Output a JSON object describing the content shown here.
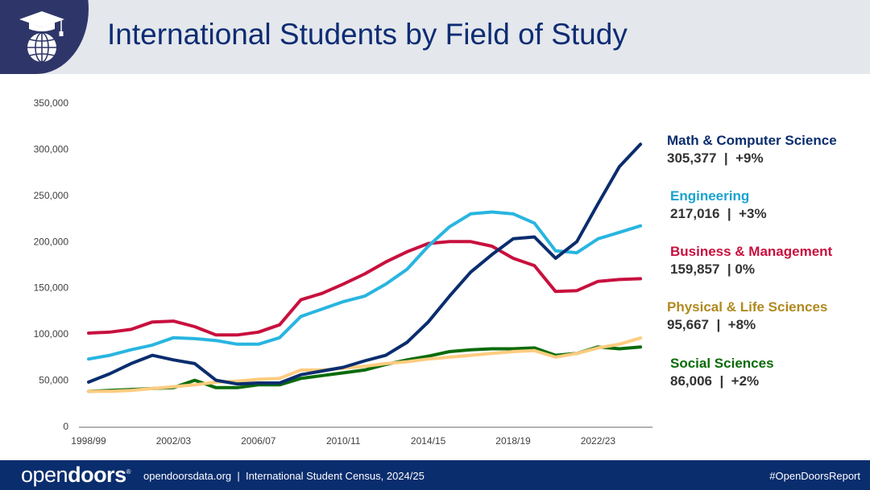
{
  "header": {
    "title": "International Students by Field of Study",
    "logo_icon": "graduation-globe-icon"
  },
  "footer": {
    "brand_light": "open",
    "brand_bold": "doors",
    "brand_mark": "®",
    "text": "opendoorsdata.org  |  International Student Census, 2024/25",
    "hashtag": "#OpenDoorsReport"
  },
  "chart_data": {
    "type": "line",
    "title": "International Students by Field of Study",
    "xlabel": "",
    "ylabel": "",
    "x": [
      "1998/99",
      "1999/00",
      "2000/01",
      "2001/02",
      "2002/03",
      "2003/04",
      "2004/05",
      "2005/06",
      "2006/07",
      "2007/08",
      "2008/09",
      "2009/10",
      "2010/11",
      "2011/12",
      "2012/13",
      "2013/14",
      "2014/15",
      "2015/16",
      "2016/17",
      "2017/18",
      "2018/19",
      "2019/20",
      "2020/21",
      "2021/22",
      "2022/23",
      "2023/24",
      "2024/25"
    ],
    "x_tick_labels": [
      "1998/99",
      "2002/03",
      "2006/07",
      "2010/11",
      "2014/15",
      "2018/19",
      "2022/23"
    ],
    "y_ticks": [
      0,
      50000,
      100000,
      150000,
      200000,
      250000,
      300000,
      350000
    ],
    "y_tick_labels": [
      "0",
      "50,000",
      "100,000",
      "150,000",
      "200,000",
      "250,000",
      "300,000",
      "350,000"
    ],
    "ylim": [
      0,
      350000
    ],
    "grid": false,
    "legend_placement": "right",
    "series": [
      {
        "name": "Math & Computer Science",
        "summary": "305,377  |  +9%",
        "color": "#0a2d6e",
        "text_color": "#0a2d6e",
        "values": [
          48000,
          57000,
          68000,
          77000,
          72000,
          68000,
          50000,
          46000,
          47000,
          47000,
          56000,
          60000,
          64000,
          71000,
          77000,
          91000,
          113000,
          141000,
          167000,
          186000,
          203000,
          205000,
          182000,
          200000,
          241000,
          281000,
          305377
        ]
      },
      {
        "name": "Engineering",
        "summary": "217,016  |  +3%",
        "color": "#29b5e0",
        "text_color": "#1aa3cf",
        "values": [
          73000,
          77000,
          83000,
          88000,
          96000,
          95000,
          93000,
          89000,
          89000,
          96000,
          119000,
          127000,
          135000,
          141000,
          154000,
          170000,
          195000,
          216000,
          230000,
          232000,
          230000,
          220000,
          190000,
          188000,
          203000,
          210000,
          217016
        ]
      },
      {
        "name": "Business & Management",
        "summary": "159,857  | 0%",
        "color": "#c8103e",
        "text_color": "#c8103e",
        "values": [
          101000,
          102000,
          105000,
          113000,
          114000,
          108000,
          99000,
          99000,
          102000,
          110000,
          137000,
          144000,
          154000,
          165000,
          178000,
          189000,
          198000,
          200000,
          200000,
          195000,
          182000,
          174000,
          146000,
          147000,
          157000,
          159000,
          159857
        ]
      },
      {
        "name": "Physical & Life Sciences",
        "summary": "95,667  |  +8%",
        "color": "#ffcc80",
        "text_color": "#b08a1e",
        "values": [
          38000,
          38000,
          39000,
          41000,
          43000,
          45000,
          48000,
          49000,
          51000,
          52000,
          61000,
          61000,
          63000,
          65000,
          68000,
          70000,
          73000,
          75000,
          77000,
          79000,
          81000,
          82000,
          75000,
          79000,
          85000,
          89000,
          95667
        ]
      },
      {
        "name": "Social Sciences",
        "summary": "86,006  |  +2%",
        "color": "#0a6b0a",
        "text_color": "#0a6b0a",
        "values": [
          38000,
          39000,
          40000,
          41000,
          42000,
          50000,
          42000,
          42000,
          45000,
          45000,
          52000,
          55000,
          58000,
          61000,
          67000,
          72000,
          76000,
          81000,
          83000,
          84000,
          84000,
          85000,
          77000,
          79000,
          86000,
          84000,
          86006
        ]
      }
    ]
  }
}
